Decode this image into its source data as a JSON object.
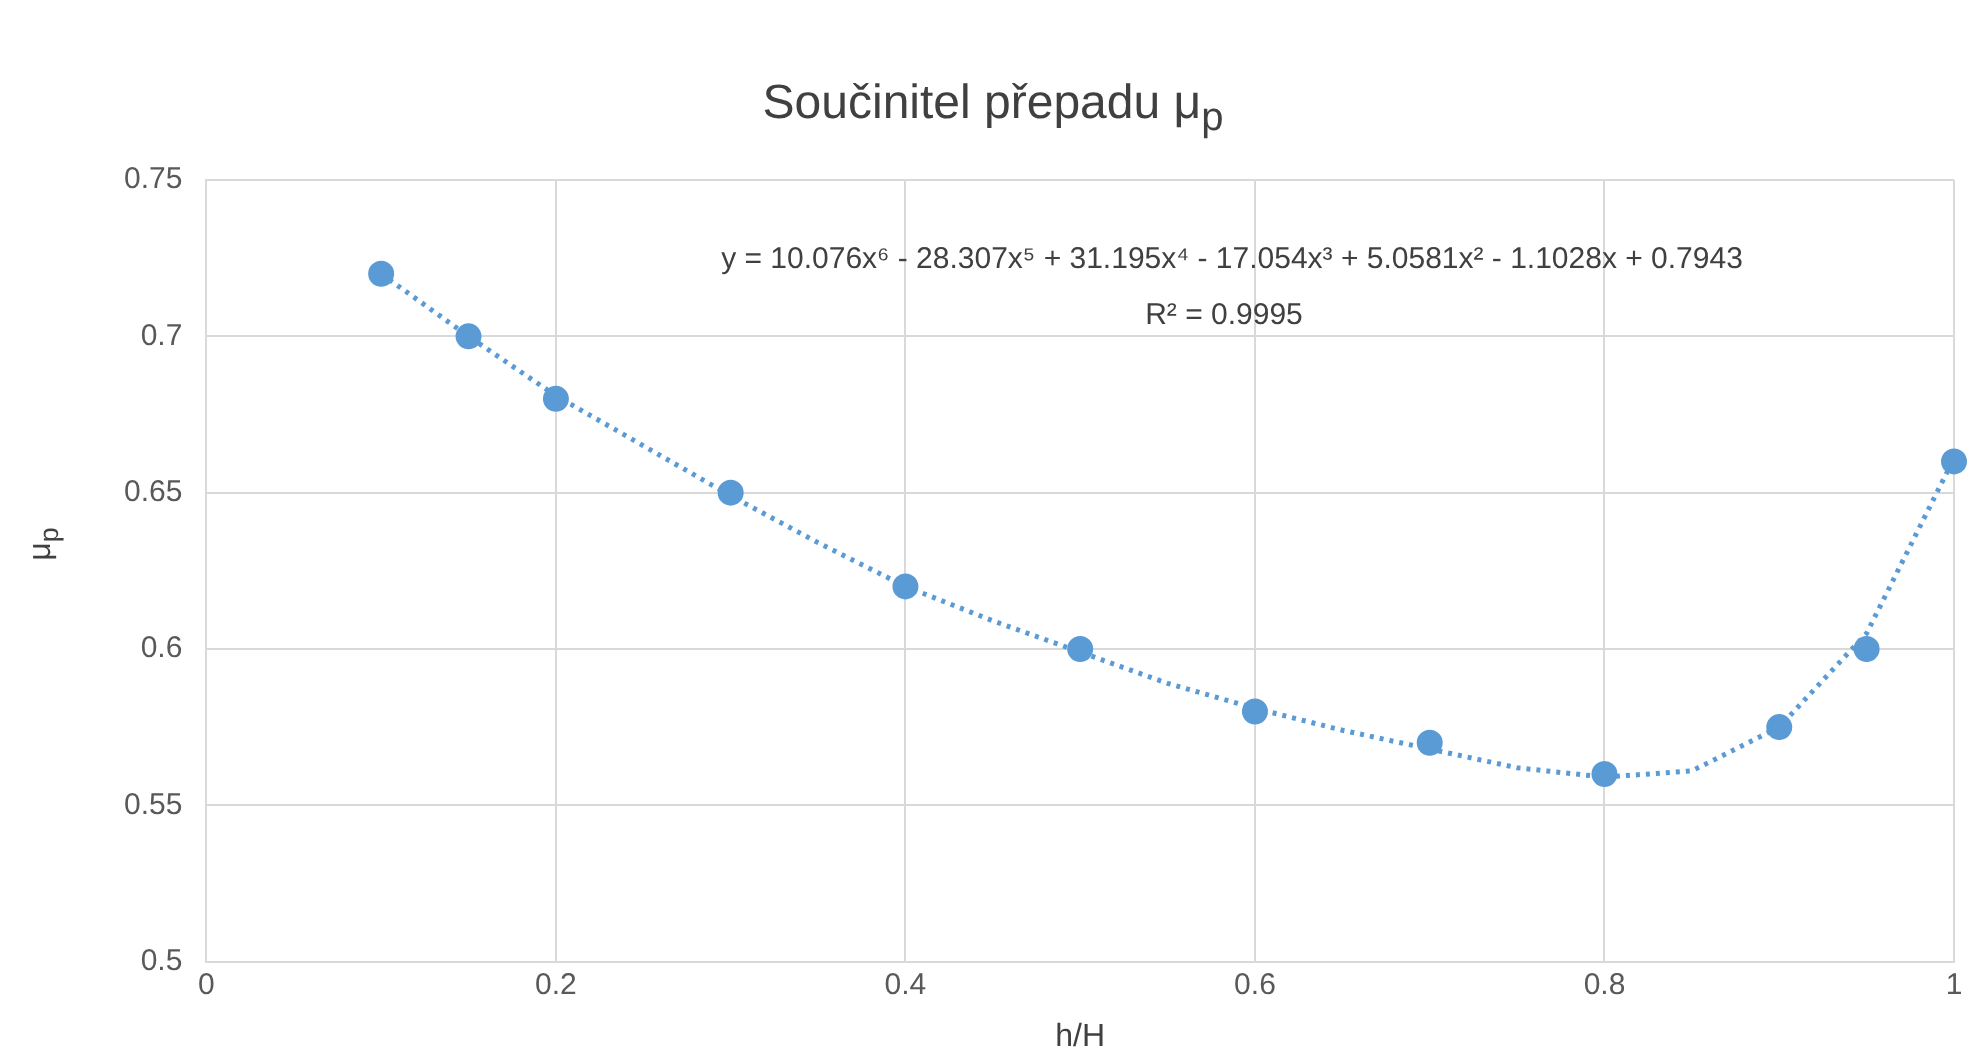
{
  "chart_data": {
    "type": "scatter",
    "title": "Součinitel přepadu μ$_{p}$",
    "xlabel": "h/H",
    "ylabel": "μ$_{p}$",
    "series": [
      {
        "color": "#5b9bd5",
        "x": [
          0.1,
          0.15,
          0.2,
          0.3,
          0.4,
          0.5,
          0.6,
          0.7,
          0.8,
          0.9,
          0.95,
          1.0
        ],
        "values": [
          0.72,
          0.7,
          0.68,
          0.65,
          0.62,
          0.6,
          0.58,
          0.57,
          0.56,
          0.575,
          0.6,
          0.66
        ],
        "marker": "circle"
      },
      {
        "type": "line",
        "color": "#5b9bd5",
        "line_style": "dotted",
        "marker": "none",
        "x": [
          0.1,
          0.15,
          0.2,
          0.25,
          0.3,
          0.35,
          0.4,
          0.45,
          0.5,
          0.55,
          0.6,
          0.65,
          0.7,
          0.75,
          0.8,
          0.85,
          0.9,
          0.95,
          1.0
        ],
        "values": [
          0.72,
          0.7,
          0.681,
          0.665,
          0.649,
          0.634,
          0.62,
          0.609,
          0.599,
          0.589,
          0.581,
          0.574,
          0.568,
          0.562,
          0.559,
          0.561,
          0.575,
          0.605,
          0.661
        ]
      }
    ],
    "xlim": [
      0,
      1
    ],
    "xticks": [
      0,
      0.2,
      0.4,
      0.6,
      0.8,
      1
    ],
    "ylim": [
      0.5,
      0.75
    ],
    "yticks": [
      0.5,
      0.55,
      0.6,
      0.65,
      0.7,
      0.75
    ],
    "grid": true,
    "legend": false,
    "annotations": [
      "y = 10.076x⁶ - 28.307x⁵ + 31.195x⁴ - 17.054x³ + 5.0581x² - 1.1028x + 0.7943",
      "R² = 0.9995"
    ]
  }
}
